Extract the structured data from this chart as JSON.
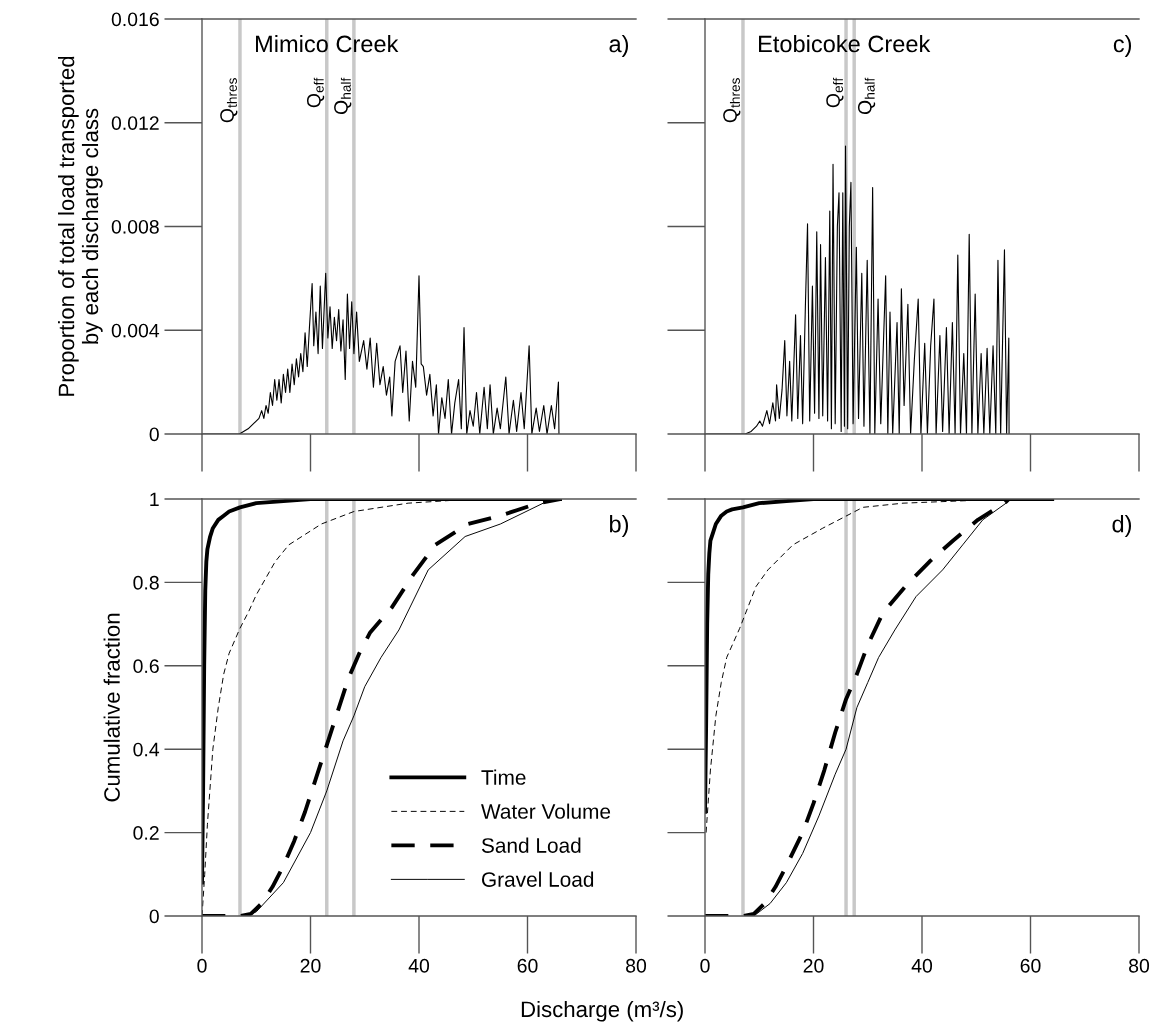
{
  "chart_data": [
    {
      "type": "line",
      "ylabel": "Proportion of total load transported\nby each discharge class",
      "annotations": [
        "Mimico Creek",
        "a)"
      ],
      "xlim": [
        0,
        80
      ],
      "ylim": [
        0,
        0.016
      ],
      "xticks": [
        0,
        20,
        40,
        60,
        80
      ],
      "yticks": [
        0,
        0.004,
        0.008,
        0.012,
        0.016
      ],
      "tick_labels": "y",
      "ref_lines": [
        {
          "axis": "x",
          "value": 7,
          "label": "Q$_{thres}$",
          "color": "#c8c8c8"
        },
        {
          "axis": "x",
          "value": 23,
          "label": "Q$_{eff}$",
          "color": "#c8c8c8"
        },
        {
          "axis": "x",
          "value": 28,
          "label": "Q$_{half}$",
          "color": "#c8c8c8"
        }
      ],
      "series": [
        {
          "color": "#000000",
          "x": [
            0,
            6.9,
            8.5,
            9.5,
            10.5,
            11,
            11.4,
            11.8,
            12.2,
            12.6,
            13,
            13.4,
            13.8,
            14.2,
            14.6,
            15,
            15.4,
            15.8,
            16.2,
            16.6,
            17,
            17.4,
            17.8,
            18.2,
            18.6,
            19,
            19.4,
            19.8,
            20.3,
            20.6,
            21,
            21.4,
            21.8,
            22.2,
            22.8,
            23.2,
            23.6,
            24,
            24.4,
            24.8,
            25.2,
            25.6,
            26,
            26.4,
            26.8,
            27.2,
            27.6,
            28,
            28.5,
            29,
            29.8,
            30.4,
            31,
            31.6,
            32.2,
            32.8,
            33.4,
            34,
            34.6,
            35,
            35.6,
            36.5,
            37,
            37.6,
            38.2,
            38.8,
            39.4,
            40,
            40.4,
            40.8,
            41.4,
            42,
            42.6,
            43.2,
            43.6,
            44.2,
            44.8,
            45.4,
            46,
            46.6,
            47.3,
            47.8,
            48.3,
            48.8,
            49.4,
            50,
            50.6,
            51.2,
            52,
            52.6,
            53.1,
            53.7,
            54.4,
            55,
            56,
            56.6,
            57.4,
            58,
            58.8,
            59.4,
            60.3,
            60.8,
            61.6,
            62.2,
            63,
            63.6,
            64.4,
            65,
            65.7,
            65.8
          ],
          "values": [
            0,
            0,
            0.0002,
            0.0004,
            0.0006,
            0.0009,
            0.0006,
            0.0011,
            0.0008,
            0.0016,
            0.0011,
            0.0021,
            0.0013,
            0.0021,
            0.0012,
            0.0023,
            0.0016,
            0.0025,
            0.0016,
            0.0027,
            0.0019,
            0.0029,
            0.0022,
            0.0031,
            0.0024,
            0.0039,
            0.0026,
            0.0041,
            0.0058,
            0.0034,
            0.0047,
            0.0031,
            0.0057,
            0.0033,
            0.0062,
            0.0037,
            0.0049,
            0.0033,
            0.0045,
            0.0036,
            0.0048,
            0.0032,
            0.0044,
            0.0021,
            0.0054,
            0.0033,
            0.0051,
            0.0031,
            0.0047,
            0.0028,
            0.0036,
            0.0025,
            0.0037,
            0.0018,
            0.0035,
            0.0019,
            0.0026,
            0.0015,
            0.0022,
            0.0007,
            0.0028,
            0.0034,
            0.0016,
            0.0032,
            0.0005,
            0.0028,
            0.0018,
            0.0061,
            0.0027,
            0.0026,
            0.0015,
            0.0023,
            0.0007,
            0.0019,
            0,
            0.0014,
            0.0006,
            0.0021,
            0,
            0.0012,
            0.0021,
            0.0002,
            0.0041,
            0,
            0.0009,
            0.0003,
            0.0016,
            0,
            0.0018,
            0.0002,
            0.0019,
            0,
            0.001,
            0.0002,
            0.0022,
            0,
            0.0013,
            0.0001,
            0.0016,
            0.0002,
            0.0034,
            0,
            0.001,
            0.0001,
            0.0011,
            0,
            0.0011,
            0.0002,
            0.002,
            0
          ]
        }
      ]
    },
    {
      "type": "line",
      "annotations": [
        "Etobicoke Creek",
        "c)"
      ],
      "xlim": [
        0,
        80
      ],
      "ylim": [
        0,
        0.016
      ],
      "xticks": [
        0,
        20,
        40,
        60,
        80
      ],
      "yticks": [
        0,
        0.004,
        0.008,
        0.012,
        0.016
      ],
      "tick_labels": false,
      "ref_lines": [
        {
          "axis": "x",
          "value": 7,
          "label": "Q$_{thres}$",
          "color": "#c8c8c8"
        },
        {
          "axis": "x",
          "value": 26,
          "label": "Q$_{eff}$",
          "color": "#c8c8c8"
        },
        {
          "axis": "x",
          "value": 27.5,
          "label": "Q$_{half}$",
          "color": "#c8c8c8"
        }
      ],
      "series": [
        {
          "color": "#000000",
          "x": [
            0,
            7.4,
            8.5,
            9.5,
            10.1,
            10.6,
            11.4,
            11.9,
            12.5,
            13,
            13.2,
            13.7,
            14.2,
            14.7,
            15.1,
            15.6,
            16,
            16.7,
            17.1,
            17.6,
            18,
            18.5,
            18.9,
            19.3,
            19.8,
            20.2,
            20.6,
            21,
            21.3,
            21.7,
            22.2,
            22.6,
            23,
            23.3,
            23.6,
            24,
            24.4,
            24.7,
            25.1,
            25.4,
            25.7,
            25.9,
            26.3,
            26.6,
            26.9,
            27.3,
            27.9,
            28.3,
            28.9,
            29.3,
            29.9,
            30.4,
            30.9,
            31.3,
            31.9,
            32.4,
            33.3,
            33.7,
            34.1,
            34.6,
            35.4,
            35.8,
            36.2,
            36.7,
            37.4,
            37.9,
            38.6,
            39.3,
            39.8,
            40.5,
            41,
            41.6,
            42.2,
            42.6,
            43.3,
            43.8,
            44.5,
            45,
            45.6,
            46.1,
            46.6,
            47.1,
            47.7,
            48.2,
            48.7,
            49.2,
            49.8,
            50.3,
            50.9,
            51.4,
            52,
            52.5,
            53.1,
            53.6,
            54,
            54.5,
            55.2,
            55.6,
            56,
            56.05
          ],
          "values": [
            0,
            0,
            0.0001,
            0.0003,
            0.0005,
            0.0003,
            0.0009,
            0.0004,
            0.0012,
            0.0005,
            0.0019,
            0.0006,
            0.0017,
            0.0036,
            0.0007,
            0.0028,
            0.0005,
            0.0046,
            0.0006,
            0.0038,
            0.0004,
            0.0049,
            0.0081,
            0.0005,
            0.0057,
            0.0008,
            0.0078,
            0.0006,
            0.0073,
            0.0007,
            0.0068,
            0.0005,
            0.0086,
            0.0002,
            0.0104,
            0.0004,
            0.008,
            0.0093,
            0.0001,
            0.0093,
            0.0003,
            0.0111,
            0.0002,
            0.008,
            0.0097,
            0.0004,
            0.0072,
            0.0006,
            0.0062,
            0.0003,
            0.0067,
            0,
            0.0095,
            0,
            0.0052,
            0.0004,
            0.0061,
            0,
            0.0047,
            0,
            0.0043,
            0,
            0.0056,
            0.0011,
            0.005,
            0,
            0.0029,
            0.0052,
            0,
            0.0035,
            0,
            0.0034,
            0.0052,
            0,
            0.0038,
            0.0001,
            0.0041,
            0,
            0.0043,
            0,
            0.0069,
            0,
            0.0031,
            0,
            0.0077,
            0,
            0.0054,
            0,
            0.0031,
            0,
            0.0033,
            0,
            0.0034,
            0,
            0.0067,
            0,
            0.0071,
            0,
            0.0037,
            0
          ]
        }
      ]
    },
    {
      "type": "line",
      "ylabel": "Cumulative fraction",
      "xlabel": "Discharge (m³/s)",
      "annotations": [
        "b)"
      ],
      "xlim": [
        0,
        80
      ],
      "ylim": [
        0,
        1
      ],
      "xticks": [
        0,
        20,
        40,
        60,
        80
      ],
      "yticks": [
        0,
        0.2,
        0.4,
        0.6,
        0.8,
        1
      ],
      "legend": "bottom right",
      "ref_lines": [
        {
          "axis": "x",
          "value": 7,
          "color": "#c8c8c8"
        },
        {
          "axis": "x",
          "value": 23,
          "color": "#c8c8c8"
        },
        {
          "axis": "x",
          "value": 28,
          "color": "#c8c8c8"
        }
      ],
      "series": [
        {
          "name": "Time",
          "color": "#000000",
          "line_style": "solid",
          "x": [
            0,
            0.2,
            0.4,
            0.6,
            0.8,
            1,
            1.5,
            2,
            3,
            4,
            5,
            7,
            10,
            15,
            20,
            30,
            66
          ],
          "values": [
            0.08,
            0.3,
            0.6,
            0.78,
            0.85,
            0.88,
            0.91,
            0.93,
            0.95,
            0.96,
            0.97,
            0.98,
            0.99,
            0.995,
            1,
            1,
            1
          ]
        },
        {
          "name": "Water Volume",
          "color": "#000000",
          "line_style": "dashed",
          "x": [
            0,
            0.5,
            1,
            2,
            3,
            4,
            5,
            7,
            8.6,
            10,
            13.5,
            16,
            22,
            28,
            38,
            50,
            66
          ],
          "values": [
            0,
            0.1,
            0.22,
            0.4,
            0.5,
            0.58,
            0.63,
            0.69,
            0.73,
            0.77,
            0.85,
            0.89,
            0.94,
            0.97,
            0.99,
            1,
            1
          ]
        },
        {
          "name": "Sand Load",
          "color": "#000000",
          "line_style": "dashed",
          "x": [
            0,
            3,
            7,
            9,
            11,
            13,
            15,
            17,
            19,
            21,
            23,
            25,
            27,
            29,
            31,
            35,
            39,
            43,
            49,
            55,
            62,
            66
          ],
          "values": [
            0,
            0,
            0,
            0.005,
            0.03,
            0.07,
            0.12,
            0.18,
            0.25,
            0.33,
            0.41,
            0.49,
            0.57,
            0.63,
            0.68,
            0.74,
            0.82,
            0.89,
            0.94,
            0.96,
            0.99,
            1
          ]
        },
        {
          "name": "Gravel Load",
          "color": "#000000",
          "line_style": "solid",
          "x": [
            8,
            10,
            15,
            20,
            23,
            26,
            28,
            30,
            33,
            36.3,
            41.7,
            48.5,
            55,
            62.9,
            66
          ],
          "values": [
            0,
            0.01,
            0.08,
            0.2,
            0.3,
            0.42,
            0.48,
            0.55,
            0.62,
            0.686,
            0.83,
            0.91,
            0.94,
            0.99,
            1
          ]
        }
      ]
    },
    {
      "type": "line",
      "annotations": [
        "d)"
      ],
      "xlim": [
        0,
        80
      ],
      "ylim": [
        0,
        1
      ],
      "xticks": [
        0,
        20,
        40,
        60,
        80
      ],
      "yticks": [
        0,
        0.2,
        0.4,
        0.6,
        0.8,
        1
      ],
      "tick_labels": "x",
      "ref_lines": [
        {
          "axis": "x",
          "value": 7,
          "color": "#c8c8c8"
        },
        {
          "axis": "x",
          "value": 26,
          "color": "#c8c8c8"
        },
        {
          "axis": "x",
          "value": 27.5,
          "color": "#c8c8c8"
        }
      ],
      "series": [
        {
          "color": "#000000",
          "line_style": "solid",
          "x": [
            0,
            0.2,
            0.4,
            0.6,
            0.8,
            1,
            1.5,
            2,
            3,
            4,
            5,
            7,
            10,
            15,
            20,
            30,
            64
          ],
          "values": [
            0.25,
            0.45,
            0.7,
            0.82,
            0.87,
            0.9,
            0.92,
            0.94,
            0.96,
            0.97,
            0.975,
            0.98,
            0.99,
            0.995,
            1,
            1,
            1
          ]
        },
        {
          "color": "#000000",
          "line_style": "dashed",
          "x": [
            0.2,
            1,
            2,
            3,
            4,
            6.4,
            9.4,
            11.6,
            16.2,
            21.7,
            29.1,
            36.5,
            56
          ],
          "values": [
            0.2,
            0.35,
            0.48,
            0.56,
            0.62,
            0.69,
            0.79,
            0.83,
            0.89,
            0.93,
            0.98,
            0.99,
            1
          ]
        },
        {
          "color": "#000000",
          "line_style": "dashed",
          "x": [
            0,
            3,
            7,
            9,
            11,
            13,
            15,
            18,
            20,
            22,
            24,
            26,
            28,
            30,
            32.8,
            36.9,
            41.4,
            45.7,
            50.3,
            55.2,
            56
          ],
          "values": [
            0,
            0,
            0,
            0.005,
            0.03,
            0.07,
            0.12,
            0.2,
            0.27,
            0.35,
            0.44,
            0.52,
            0.58,
            0.65,
            0.727,
            0.79,
            0.85,
            0.9,
            0.95,
            0.99,
            1
          ]
        },
        {
          "color": "#000000",
          "line_style": "solid",
          "x": [
            9,
            12,
            15,
            18,
            21,
            24,
            26,
            28,
            30,
            32,
            35,
            38.9,
            43.8,
            47.5,
            51.2,
            55.5,
            56
          ],
          "values": [
            0,
            0.03,
            0.08,
            0.15,
            0.24,
            0.34,
            0.4,
            0.5,
            0.56,
            0.62,
            0.686,
            0.766,
            0.83,
            0.89,
            0.95,
            0.99,
            1
          ]
        }
      ]
    }
  ]
}
